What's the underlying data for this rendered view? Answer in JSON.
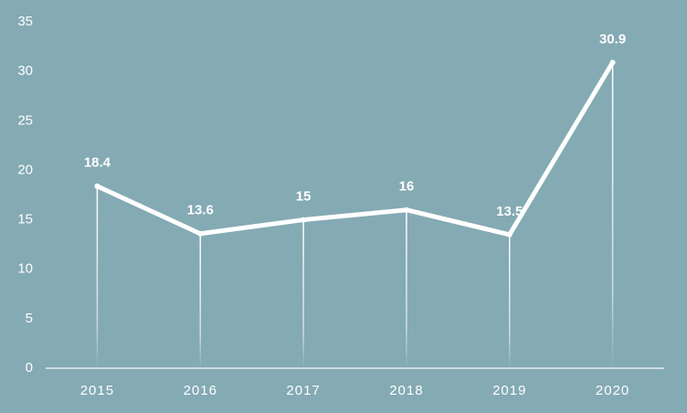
{
  "chart_data": {
    "type": "line",
    "categories": [
      "2015",
      "2016",
      "2017",
      "2018",
      "2019",
      "2020"
    ],
    "values": [
      18.4,
      13.6,
      15,
      16,
      13.5,
      30.9
    ],
    "color": "#ffffff",
    "ylim": [
      0,
      35
    ],
    "yticks": [
      0,
      5,
      10,
      15,
      20,
      25,
      30,
      35
    ]
  }
}
